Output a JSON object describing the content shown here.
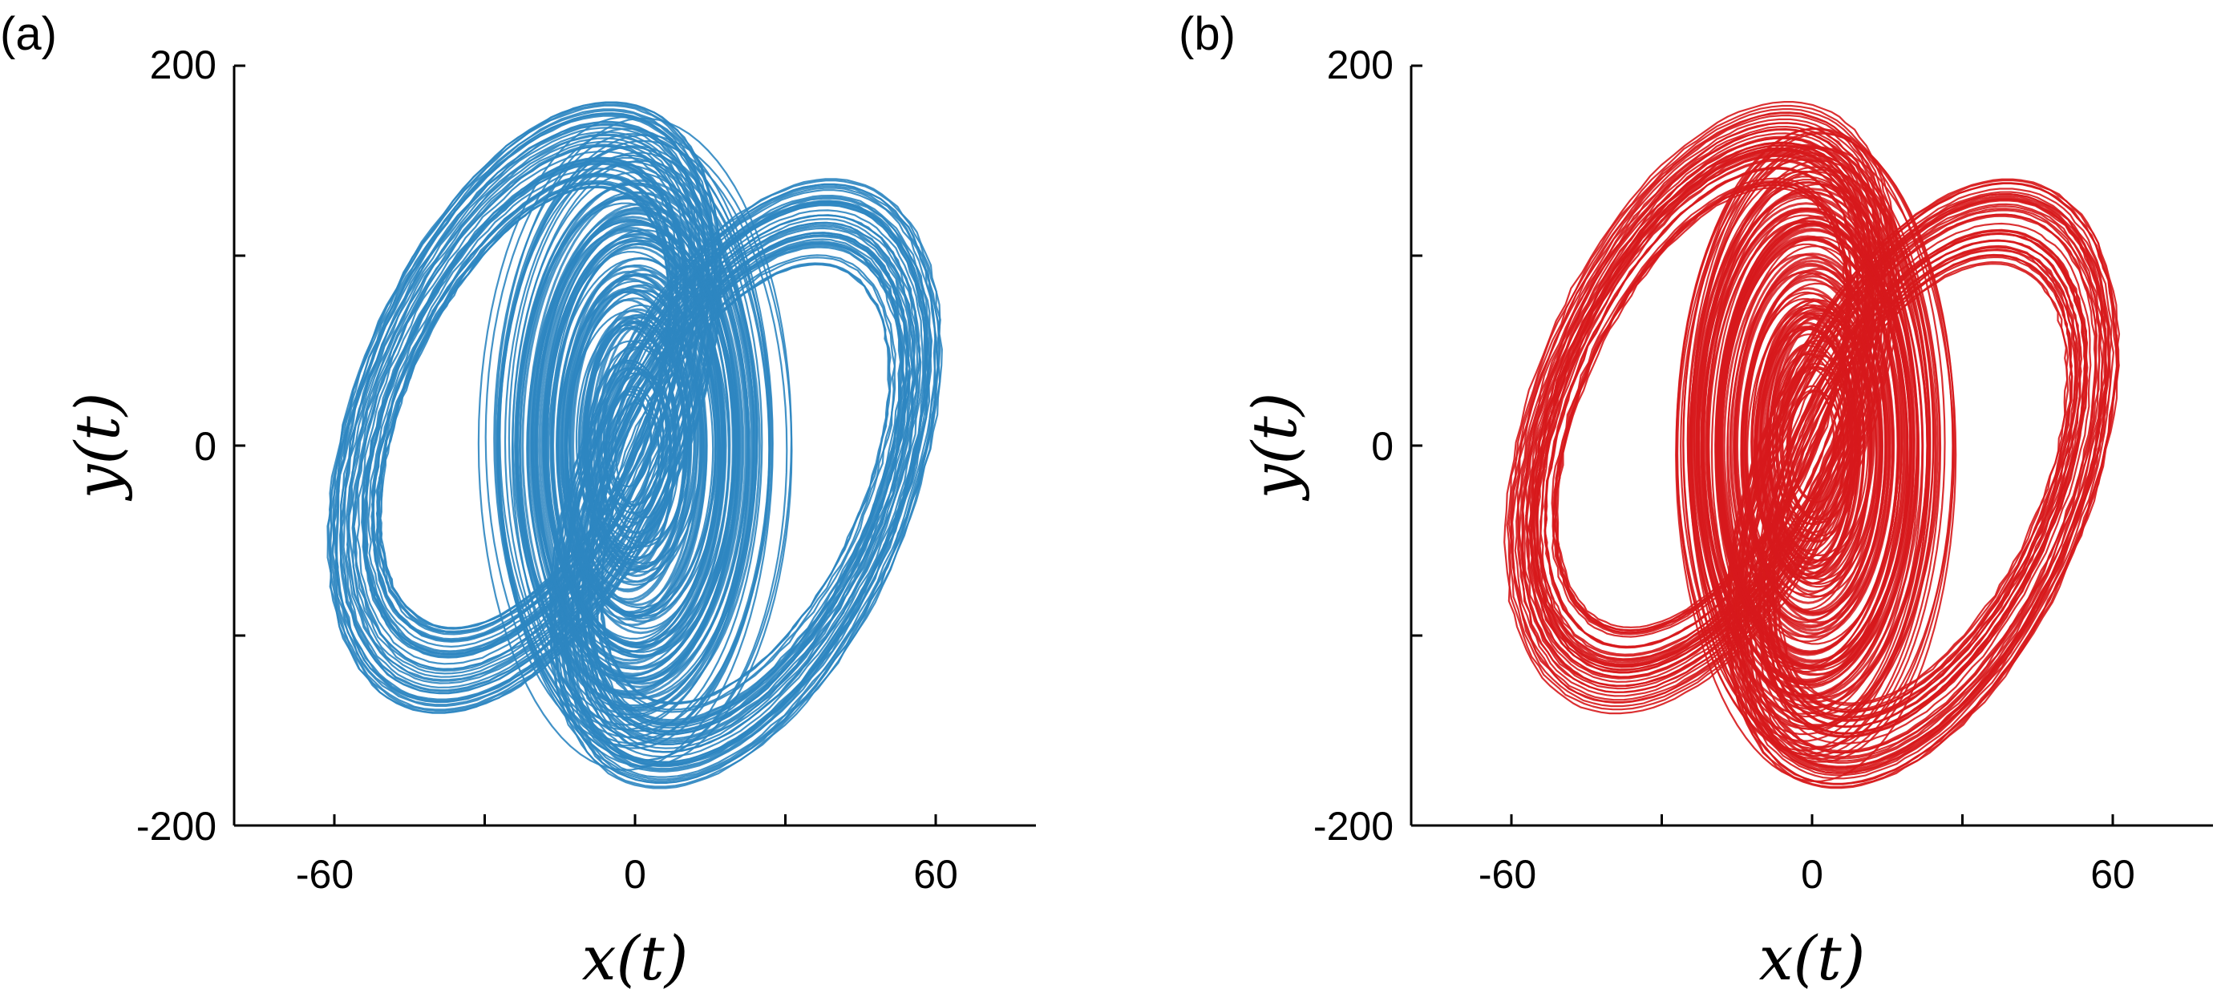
{
  "chart_data": [
    {
      "type": "line",
      "panel_label": "(a)",
      "xlabel": "x(t)",
      "ylabel": "y(t)",
      "xlim": [
        -80,
        80
      ],
      "ylim": [
        -200,
        200
      ],
      "xticks": [
        -60,
        0,
        60
      ],
      "xtick_labels": [
        "-60",
        "0",
        "60"
      ],
      "xminor_ticks": [
        -30,
        30
      ],
      "yticks": [
        -200,
        0,
        200
      ],
      "ytick_labels": [
        "-200",
        "0",
        "200"
      ],
      "yminor_ticks": [
        -100,
        100
      ],
      "color": "#2e86c1",
      "grid": false,
      "series": [
        {
          "description_points": "outer envelope samples of the chaotic attractor",
          "x": [
            0,
            25,
            38,
            28,
            0,
            -30,
            -62,
            -40,
            0,
            40,
            67,
            55,
            20,
            -10,
            -18,
            0,
            18,
            10,
            -10,
            -18,
            0
          ],
          "y": [
            182,
            140,
            20,
            -110,
            -175,
            -140,
            -105,
            30,
            130,
            100,
            80,
            -20,
            -140,
            -160,
            0,
            150,
            0,
            -150,
            -150,
            0,
            150
          ]
        }
      ]
    },
    {
      "type": "line",
      "panel_label": "(b)",
      "xlabel": "x(t)",
      "ylabel": "y(t)",
      "xlim": [
        -80,
        80
      ],
      "ylim": [
        -200,
        200
      ],
      "xticks": [
        -60,
        0,
        60
      ],
      "xtick_labels": [
        "-60",
        "0",
        "60"
      ],
      "xminor_ticks": [
        -30,
        30
      ],
      "yticks": [
        -200,
        0,
        200
      ],
      "ytick_labels": [
        "-200",
        "0",
        "200"
      ],
      "yminor_ticks": [
        -100,
        100
      ],
      "color": "#d7191c",
      "grid": false,
      "series": [
        {
          "description_points": "outer envelope samples of the chaotic attractor",
          "x": [
            0,
            25,
            30,
            22,
            0,
            -30,
            -60,
            -35,
            0,
            40,
            65,
            50,
            15,
            -10,
            -15,
            0,
            15,
            10,
            -10,
            -15,
            0
          ],
          "y": [
            170,
            130,
            20,
            -120,
            -175,
            -140,
            -100,
            40,
            120,
            100,
            80,
            -20,
            -140,
            -160,
            0,
            150,
            0,
            -150,
            -150,
            0,
            150
          ]
        }
      ]
    }
  ]
}
